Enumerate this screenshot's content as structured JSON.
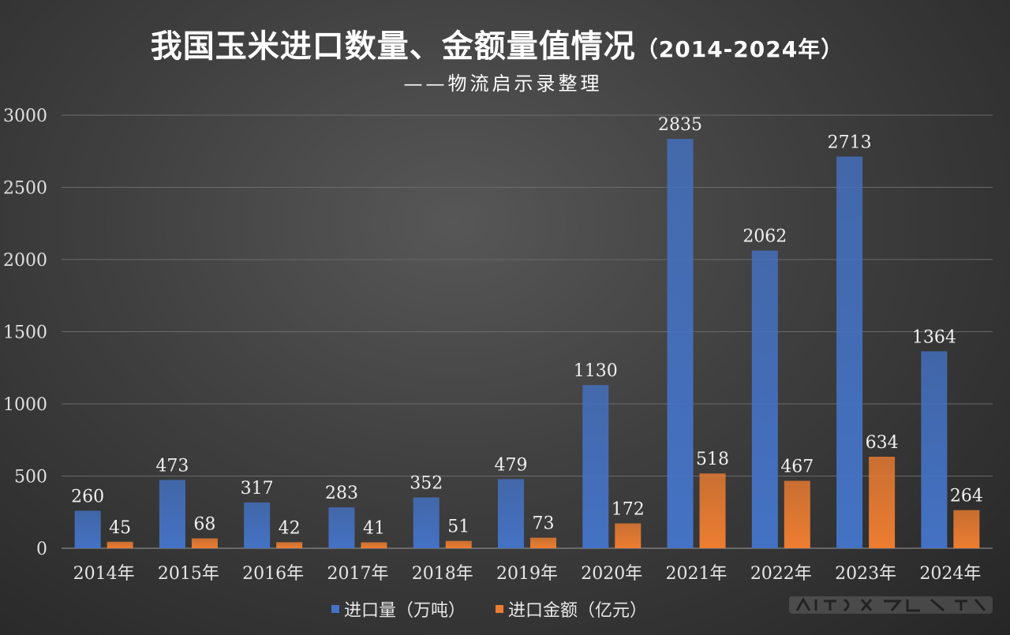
{
  "title": "我国玉米进口数量、金额量值情况",
  "title_range": "（2014-2024年）",
  "subtitle": "——物流启示录整理",
  "colors": {
    "import_volume": "#4472c4",
    "import_value": "#ed7d31"
  },
  "chart_data": {
    "type": "bar",
    "categories": [
      "2014年",
      "2015年",
      "2016年",
      "2017年",
      "2018年",
      "2019年",
      "2020年",
      "2021年",
      "2022年",
      "2023年",
      "2024年"
    ],
    "series": [
      {
        "name": "进口量（万吨）",
        "values": [
          260,
          473,
          317,
          283,
          352,
          479,
          1130,
          2835,
          2062,
          2713,
          1364
        ]
      },
      {
        "name": "进口金额（亿元）",
        "values": [
          45,
          68,
          42,
          41,
          51,
          73,
          172,
          518,
          467,
          634,
          264
        ]
      }
    ],
    "ylim": [
      0,
      3000
    ],
    "yticks": [
      0,
      500,
      1000,
      1500,
      2000,
      2500,
      3000
    ],
    "grid": true,
    "legend": "bottom"
  }
}
